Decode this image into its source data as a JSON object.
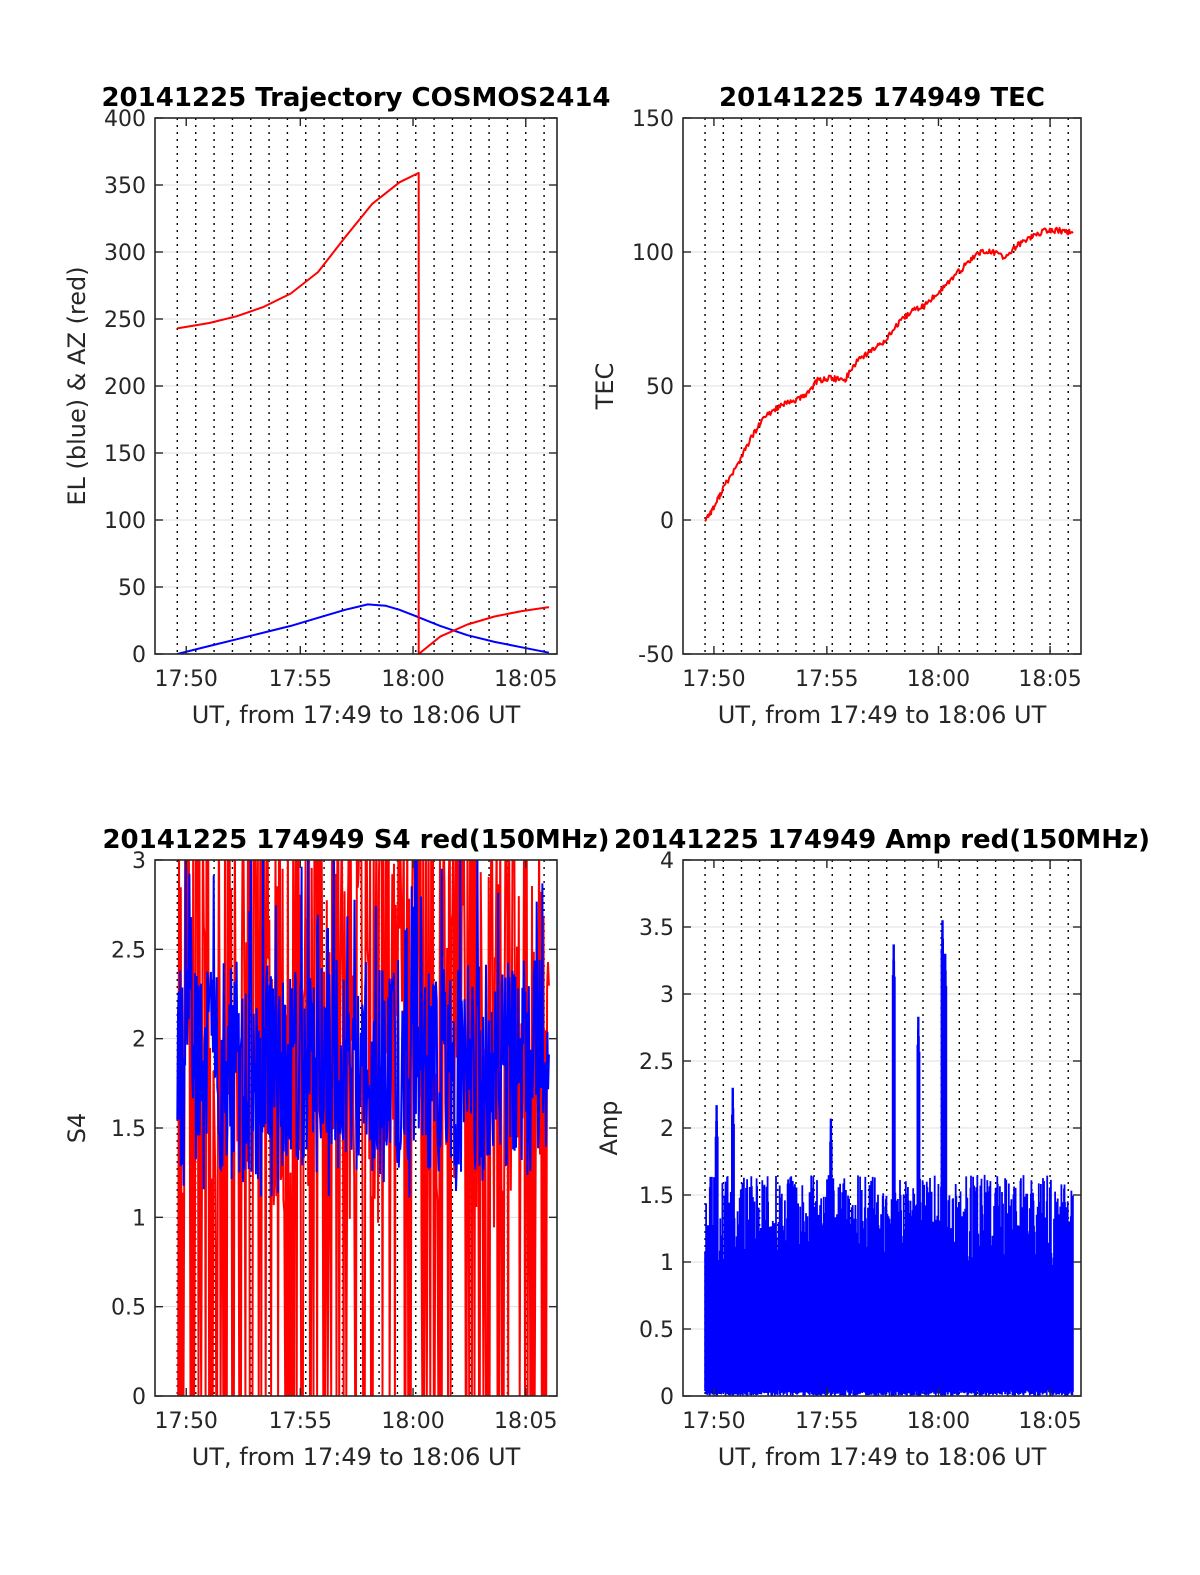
{
  "chart_data": [
    {
      "id": "trajectory",
      "type": "line",
      "title": "20141225 Trajectory COSMOS2414",
      "xlabel": "UT, from 17:49 to 18:06 UT",
      "ylabel": "EL (blue) & AZ (red)",
      "xlim": [
        17.81,
        18.106
      ],
      "ylim": [
        0,
        400
      ],
      "xticks": [
        17.833,
        17.917,
        18.0,
        18.083
      ],
      "xticklabels": [
        "17:50",
        "17:55",
        "18:00",
        "18:05"
      ],
      "yticks": [
        0,
        50,
        100,
        150,
        200,
        250,
        300,
        350,
        400
      ],
      "yticklabels": [
        "0",
        "50",
        "100",
        "150",
        "200",
        "250",
        "300",
        "350",
        "400"
      ],
      "grid": true,
      "series": [
        {
          "name": "EL",
          "color": "#0000ff",
          "x": [
            17.8264,
            17.85,
            17.87,
            17.89,
            17.91,
            17.93,
            17.95,
            17.9667,
            17.98,
            17.99,
            18.0,
            18.02,
            18.04,
            18.06,
            18.08,
            18.1
          ],
          "y": [
            0,
            6,
            11,
            16,
            21,
            27,
            33,
            37,
            36,
            33,
            29,
            21,
            14,
            9,
            5,
            1
          ]
        },
        {
          "name": "AZ",
          "color": "#ff0000",
          "x": [
            17.8264,
            17.85,
            17.87,
            17.89,
            17.91,
            17.93,
            17.95,
            17.97,
            17.99,
            18.0042,
            18.0042,
            18.02,
            18.04,
            18.06,
            18.08,
            18.1
          ],
          "y": [
            243,
            247,
            252,
            259,
            269,
            285,
            311,
            336,
            352,
            359,
            0,
            13,
            22,
            28,
            32,
            35
          ]
        }
      ]
    },
    {
      "id": "tec",
      "type": "line",
      "title": "20141225 174949 TEC",
      "xlabel": "UT, from 17:49 to 18:06 UT",
      "ylabel": "TEC",
      "xlim": [
        17.81,
        18.106
      ],
      "ylim": [
        -50,
        150
      ],
      "xticks": [
        17.833,
        17.917,
        18.0,
        18.083
      ],
      "xticklabels": [
        "17:50",
        "17:55",
        "18:00",
        "18:05"
      ],
      "yticks": [
        -50,
        0,
        50,
        100,
        150
      ],
      "yticklabels": [
        "-50",
        "0",
        "50",
        "100",
        "150"
      ],
      "grid": true,
      "series": [
        {
          "name": "TEC",
          "color": "#ff0000",
          "x": [
            17.8264,
            17.8333,
            17.84,
            17.85,
            17.86,
            17.87,
            17.88,
            17.89,
            17.9,
            17.91,
            17.92,
            17.93,
            17.94,
            17.95,
            17.96,
            17.97,
            17.98,
            17.99,
            18.0,
            18.01,
            18.02,
            18.03,
            18.04,
            18.05,
            18.06,
            18.07,
            18.08,
            18.09,
            18.1
          ],
          "y": [
            0,
            5,
            12,
            20,
            30,
            38,
            42,
            44,
            46,
            52,
            53,
            52,
            60,
            63,
            67,
            73,
            78,
            80,
            85,
            90,
            95,
            100,
            100,
            98,
            103,
            106,
            108,
            108,
            107
          ]
        }
      ]
    },
    {
      "id": "s4",
      "type": "line",
      "title": "20141225 174949 S4 red(150MHz)",
      "xlabel": "UT, from 17:49 to 18:06 UT",
      "ylabel": "S4",
      "xlim": [
        17.81,
        18.106
      ],
      "ylim": [
        0,
        3
      ],
      "xticks": [
        17.833,
        17.917,
        18.0,
        18.083
      ],
      "xticklabels": [
        "17:50",
        "17:55",
        "18:00",
        "18:05"
      ],
      "yticks": [
        0,
        0.5,
        1,
        1.5,
        2,
        2.5,
        3
      ],
      "yticklabels": [
        "0",
        "0.5",
        "1",
        "1.5",
        "2",
        "2.5",
        "3"
      ],
      "grid": true,
      "series": [
        {
          "name": "S4 red",
          "color": "#ff0000",
          "x_range": [
            17.8264,
            18.1
          ],
          "min": 0,
          "max": 3,
          "mean": 1.7
        },
        {
          "name": "S4 blue",
          "color": "#0000ff",
          "x_range": [
            17.8264,
            18.1
          ],
          "min": 1.1,
          "max": 3,
          "mean": 1.85
        }
      ]
    },
    {
      "id": "amp",
      "type": "line",
      "title": "20141225 174949 Amp red(150MHz)",
      "xlabel": "UT, from 17:49 to 18:06 UT",
      "ylabel": "Amp",
      "xlim": [
        17.81,
        18.106
      ],
      "ylim": [
        0,
        4
      ],
      "xticks": [
        17.833,
        17.917,
        18.0,
        18.083
      ],
      "xticklabels": [
        "17:50",
        "17:55",
        "18:00",
        "18:05"
      ],
      "yticks": [
        0,
        0.5,
        1,
        1.5,
        2,
        2.5,
        3,
        3.5,
        4
      ],
      "yticklabels": [
        "0",
        "0.5",
        "1",
        "1.5",
        "2",
        "2.5",
        "3",
        "3.5",
        "4"
      ],
      "grid": true,
      "series": [
        {
          "name": "Amp",
          "color": "#0000ff",
          "x_range": [
            17.8264,
            18.1
          ],
          "baseline_max": 1.6,
          "peaks": [
            {
              "x": 17.835,
              "y": 2.17
            },
            {
              "x": 17.847,
              "y": 2.3
            },
            {
              "x": 17.92,
              "y": 2.07
            },
            {
              "x": 17.9667,
              "y": 3.37
            },
            {
              "x": 17.985,
              "y": 2.83
            },
            {
              "x": 18.003,
              "y": 3.55
            },
            {
              "x": 18.005,
              "y": 3.3
            }
          ]
        }
      ]
    }
  ]
}
